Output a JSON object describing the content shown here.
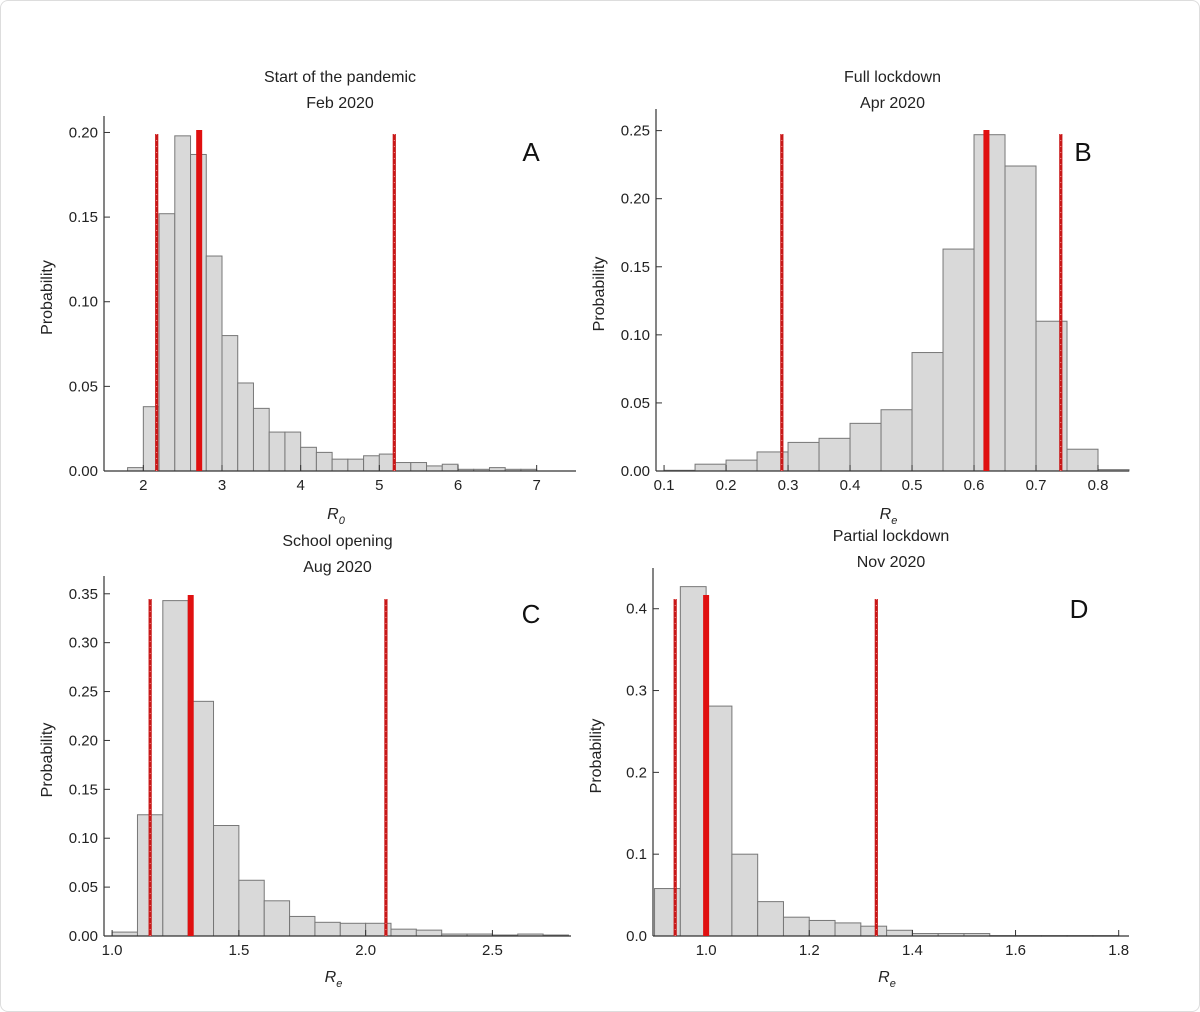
{
  "chart_data": [
    {
      "type": "bar",
      "panel": "A",
      "title": [
        "Start of the pandemic",
        "Feb 2020"
      ],
      "xlabel": {
        "base": "R",
        "sub": "0"
      },
      "ylabel": "Probability",
      "xlim": [
        1.5,
        7.5
      ],
      "ylim": [
        0,
        0.205
      ],
      "xticks": [
        "2",
        "3",
        "4",
        "5",
        "6",
        "7"
      ],
      "yticks": [
        "0.00",
        "0.05",
        "0.10",
        "0.15",
        "0.20"
      ],
      "bin_start": 1.8,
      "bin_width": 0.2,
      "values": [
        0.002,
        0.038,
        0.152,
        0.198,
        0.187,
        0.127,
        0.08,
        0.052,
        0.037,
        0.023,
        0.023,
        0.014,
        0.011,
        0.007,
        0.007,
        0.009,
        0.01,
        0.005,
        0.005,
        0.003,
        0.004,
        0.001,
        0.001,
        0.002,
        0.001,
        0.001
      ],
      "median": 2.71,
      "interval": [
        2.17,
        5.19
      ]
    },
    {
      "type": "bar",
      "panel": "B",
      "title": [
        "Full lockdown",
        "Apr 2020"
      ],
      "xlabel": {
        "base": "R",
        "sub": "e"
      },
      "ylabel": "Probability",
      "xlim": [
        0.087,
        0.85
      ],
      "ylim": [
        0,
        0.26
      ],
      "xticks": [
        "0.1",
        "0.2",
        "0.3",
        "0.4",
        "0.5",
        "0.6",
        "0.7",
        "0.8"
      ],
      "yticks": [
        "0.00",
        "0.05",
        "0.10",
        "0.15",
        "0.20",
        "0.25"
      ],
      "bin_start": 0.1,
      "bin_width": 0.05,
      "values": [
        0.0005,
        0.005,
        0.008,
        0.014,
        0.021,
        0.024,
        0.035,
        0.045,
        0.087,
        0.163,
        0.247,
        0.224,
        0.11,
        0.016,
        0.001
      ],
      "median": 0.62,
      "interval": [
        0.29,
        0.74
      ]
    },
    {
      "type": "bar",
      "panel": "C",
      "title": [
        "School opening",
        "Aug 2020"
      ],
      "xlabel": {
        "base": "R",
        "sub": "e"
      },
      "ylabel": "Probability",
      "xlim": [
        0.968,
        2.81
      ],
      "ylim": [
        0,
        0.36
      ],
      "xticks": [
        "1.0",
        "1.5",
        "2.0",
        "2.5"
      ],
      "yticks": [
        "0.00",
        "0.05",
        "0.10",
        "0.15",
        "0.20",
        "0.25",
        "0.30",
        "0.35"
      ],
      "bin_start": 1.0,
      "bin_width": 0.1,
      "values": [
        0.004,
        0.124,
        0.343,
        0.24,
        0.113,
        0.057,
        0.036,
        0.02,
        0.014,
        0.013,
        0.013,
        0.007,
        0.006,
        0.002,
        0.002,
        0.001,
        0.002,
        0.001
      ],
      "median": 1.31,
      "interval": [
        1.15,
        2.08
      ]
    },
    {
      "type": "bar",
      "panel": "D",
      "title": [
        "Partial lockdown",
        "Nov 2020"
      ],
      "xlabel": {
        "base": "R",
        "sub": "e"
      },
      "ylabel": "Probability",
      "xlim": [
        0.897,
        1.82
      ],
      "ylim": [
        0,
        0.44
      ],
      "xticks": [
        "1.0",
        "1.2",
        "1.4",
        "1.6",
        "1.8"
      ],
      "yticks": [
        "0.0",
        "0.1",
        "0.2",
        "0.3",
        "0.4"
      ],
      "bin_start": 0.9,
      "bin_width": 0.05,
      "values": [
        0.058,
        0.427,
        0.281,
        0.1,
        0.042,
        0.023,
        0.019,
        0.016,
        0.012,
        0.007,
        0.003,
        0.003,
        0.003,
        0.0005,
        0.0005,
        0.0005,
        0.0005,
        0.0005
      ],
      "median": 1.0,
      "interval": [
        0.94,
        1.33
      ]
    }
  ],
  "colors": {
    "bar_fill": "#d9d9d9",
    "bar_edge": "#777777",
    "median_line": "#e01010",
    "interval_line": "#c81818"
  }
}
